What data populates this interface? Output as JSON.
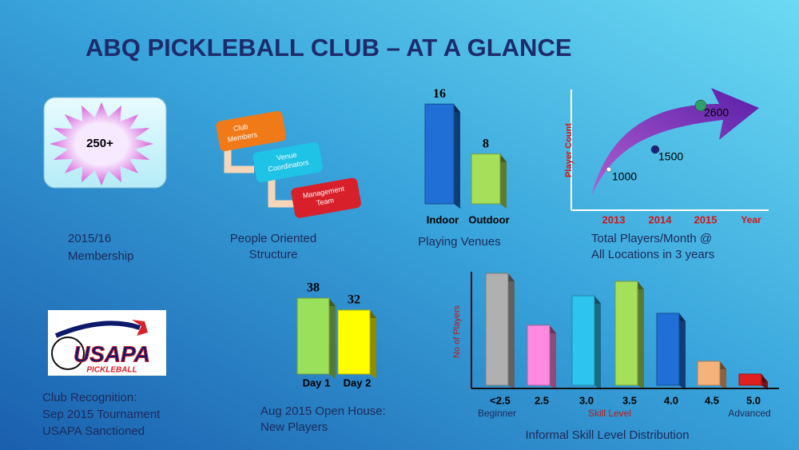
{
  "title": "ABQ PICKLEBALL CLUB – AT A GLANCE",
  "membership": {
    "count": "250+",
    "caption": [
      "2015/16",
      "Membership"
    ]
  },
  "structure": {
    "nodes": [
      [
        "Club",
        "Members"
      ],
      [
        "Venue",
        "Coordinators"
      ],
      [
        "Management",
        "Team"
      ]
    ],
    "caption": [
      "People Oriented",
      "Structure"
    ]
  },
  "recognition": {
    "logo": {
      "text": "USAPA",
      "subtext": "PICKLEBALL"
    },
    "caption": [
      "Club Recognition:",
      "Sep 2015 Tournament",
      "USAPA Sanctioned"
    ]
  },
  "chart_data": [
    {
      "type": "bar",
      "title": [
        "Playing Venues"
      ],
      "categories": [
        "Indoor",
        "Outdoor"
      ],
      "values": [
        16,
        8
      ],
      "colors": [
        "#1f6fd6",
        "#a6e05a"
      ],
      "data_labels": true
    },
    {
      "type": "scatter",
      "title": [
        "Total Players/Month @",
        "All Locations in 3 years"
      ],
      "y_label": "Player Count",
      "x_label": "Year",
      "categories": [
        "2013",
        "2014",
        "2015"
      ],
      "values": [
        1000,
        1500,
        2600
      ],
      "colors": [
        "#ffffff",
        "#1a237e",
        "#2e9e6a"
      ],
      "data_labels": true
    },
    {
      "type": "bar",
      "title": [
        "Aug 2015 Open  House:",
        "New Players"
      ],
      "categories": [
        "Day 1",
        "Day 2"
      ],
      "values": [
        38,
        32
      ],
      "colors": [
        "#9be05a",
        "#ffff00"
      ],
      "data_labels": true
    },
    {
      "type": "bar",
      "title": [
        "Informal Skill Level Distribution"
      ],
      "y_label": "No of Players",
      "categories": [
        "<2.5",
        "2.5",
        "3.0",
        "3.5",
        "4.0",
        "4.5",
        "5.0"
      ],
      "values": [
        140,
        75,
        112,
        130,
        90,
        30,
        14
      ],
      "colors": [
        "#b0b0b0",
        "#ff8be0",
        "#2ec4f0",
        "#a6e05a",
        "#1f6fd6",
        "#f5b27a",
        "#e02020"
      ],
      "data_labels": false,
      "scale_notes": [
        "Beginner",
        "Skill Level",
        "Advanced"
      ]
    }
  ]
}
